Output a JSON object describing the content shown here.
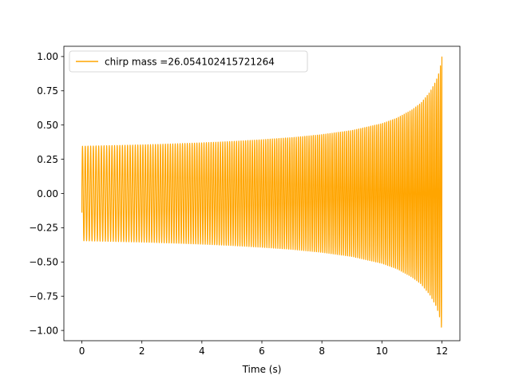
{
  "chart_data": {
    "type": "line",
    "xlabel": "Time (s)",
    "ylabel": "",
    "title": "",
    "xlim": [
      -0.6,
      12.6
    ],
    "ylim": [
      -1.075,
      1.075
    ],
    "xticks": [
      0,
      2,
      4,
      6,
      8,
      10,
      12
    ],
    "xtick_labels": [
      "0",
      "2",
      "4",
      "6",
      "8",
      "10",
      "12"
    ],
    "yticks": [
      -1.0,
      -0.75,
      -0.5,
      -0.25,
      0.0,
      0.25,
      0.5,
      0.75,
      1.0
    ],
    "ytick_labels": [
      "−1.00",
      "−0.75",
      "−0.50",
      "−0.25",
      "0.00",
      "0.25",
      "0.50",
      "0.75",
      "1.00"
    ],
    "grid": false,
    "legend_position": "upper-left",
    "series": [
      {
        "name": "chirp mass =26.054102415721264",
        "color": "#ffa500",
        "t_start": 0.0,
        "t_end": 12.0,
        "initial_value": -0.14,
        "start_frequency_hz": 11.0,
        "end_frequency_hz": 16.0,
        "envelope": {
          "t": [
            0.0,
            1.0,
            2.0,
            3.0,
            4.0,
            5.0,
            6.0,
            7.0,
            8.0,
            9.0,
            10.0,
            10.5,
            11.0,
            11.3,
            11.6,
            11.8,
            11.9,
            11.95,
            12.0
          ],
          "amplitude": [
            0.345,
            0.35,
            0.355,
            0.362,
            0.37,
            0.38,
            0.393,
            0.408,
            0.43,
            0.46,
            0.51,
            0.55,
            0.61,
            0.66,
            0.74,
            0.82,
            0.88,
            0.93,
            1.0
          ]
        }
      }
    ]
  }
}
